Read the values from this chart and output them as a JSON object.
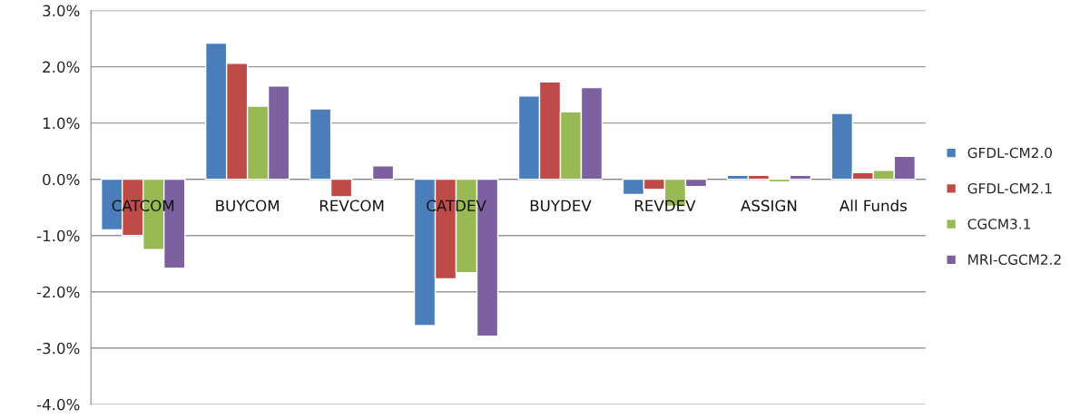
{
  "chart_data": {
    "type": "bar",
    "categories": [
      "CATCOM",
      "BUYCOM",
      "REVCOM",
      "CATDEV",
      "BUYDEV",
      "REVDEV",
      "ASSIGN",
      "All Funds"
    ],
    "series": [
      {
        "name": "GFDL-CM2.0",
        "color": "#4a7ebb",
        "values": [
          -0.9,
          2.42,
          1.25,
          -2.6,
          1.48,
          -0.27,
          0.07,
          1.17
        ]
      },
      {
        "name": "GFDL-CM2.1",
        "color": "#be4b48",
        "values": [
          -1.0,
          2.06,
          -0.31,
          -1.77,
          1.73,
          -0.18,
          0.07,
          0.12
        ]
      },
      {
        "name": "CGCM3.1",
        "color": "#98b954",
        "values": [
          -1.25,
          1.3,
          null,
          -1.66,
          1.2,
          -0.48,
          -0.05,
          0.16
        ]
      },
      {
        "name": "MRI-CGCM2.2",
        "color": "#7d60a0",
        "values": [
          -1.58,
          1.66,
          0.24,
          -2.79,
          1.63,
          -0.13,
          0.07,
          0.41
        ]
      }
    ],
    "ylim": [
      -4,
      3
    ],
    "yticks": [
      {
        "value": -4,
        "label": "-4.0%"
      },
      {
        "value": -3,
        "label": "-3.0%"
      },
      {
        "value": -2,
        "label": "-2.0%"
      },
      {
        "value": -1,
        "label": "-1.0%"
      },
      {
        "value": 0,
        "label": "0.0%"
      },
      {
        "value": 1,
        "label": "1.0%"
      },
      {
        "value": 2,
        "label": "2.0%"
      },
      {
        "value": 3,
        "label": "3.0%"
      }
    ],
    "grid": "y",
    "legend": "right"
  }
}
